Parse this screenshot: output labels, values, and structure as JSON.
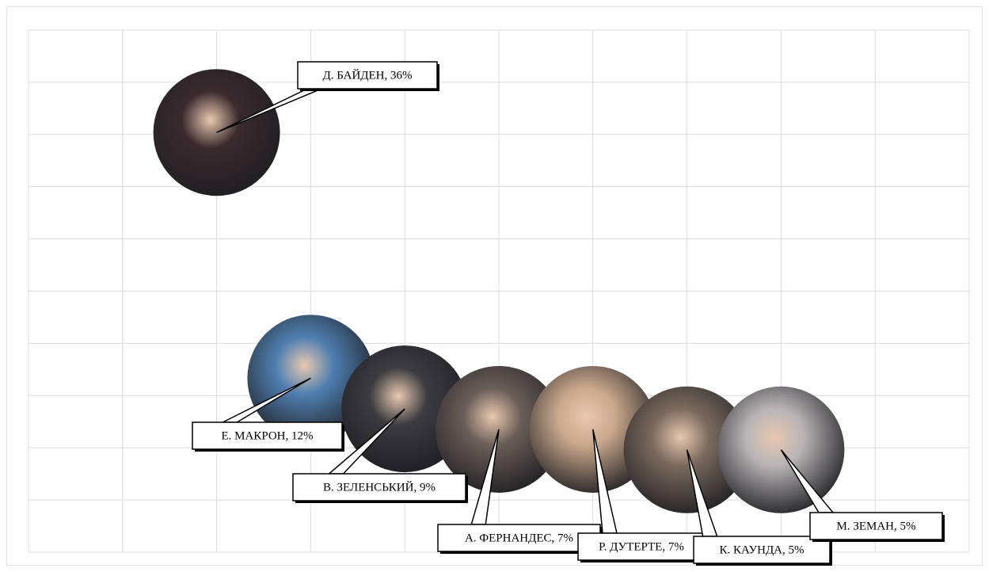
{
  "chart_data": {
    "type": "bubble",
    "values": [
      36,
      12,
      9,
      7,
      7,
      5,
      5
    ],
    "value_labels": [
      "Д. БАЙДЕН, 36%",
      "Е. МАКРОН, 12%",
      "В. ЗЕЛЕНСЬКИЙ, 9%",
      "А. ФЕРНАНДЕС, 7%",
      "Р. ДУТЕРТЕ, 7%",
      "К. КАУНДА, 5%",
      "М. ЗЕМАН, 5%"
    ],
    "colors": [
      "#3a2a2e",
      "#4f7fb0",
      "#3c3c40",
      "#6a5e58",
      "#c9a88c",
      "#7a6a5e",
      "#b8b4b6"
    ],
    "ylim": [
      -5,
      46
    ]
  }
}
